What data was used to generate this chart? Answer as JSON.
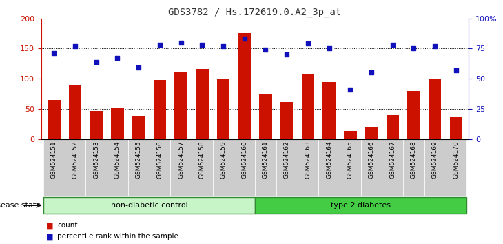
{
  "title": "GDS3782 / Hs.172619.0.A2_3p_at",
  "samples": [
    "GSM524151",
    "GSM524152",
    "GSM524153",
    "GSM524154",
    "GSM524155",
    "GSM524156",
    "GSM524157",
    "GSM524158",
    "GSM524159",
    "GSM524160",
    "GSM524161",
    "GSM524162",
    "GSM524163",
    "GSM524164",
    "GSM524165",
    "GSM524166",
    "GSM524167",
    "GSM524168",
    "GSM524169",
    "GSM524170"
  ],
  "counts": [
    65,
    90,
    46,
    52,
    38,
    98,
    112,
    116,
    100,
    175,
    75,
    61,
    107,
    95,
    14,
    20,
    40,
    80,
    100,
    36
  ],
  "percentiles": [
    71,
    77,
    64,
    67,
    59,
    78,
    80,
    78,
    77,
    83,
    74,
    70,
    79,
    75,
    41,
    55,
    78,
    75,
    77,
    57
  ],
  "groups": [
    {
      "label": "non-diabetic control",
      "start": 0,
      "end": 10,
      "color": "#c8f5c8"
    },
    {
      "label": "type 2 diabetes",
      "start": 10,
      "end": 20,
      "color": "#44cc44"
    }
  ],
  "bar_color": "#cc1100",
  "dot_color": "#1111bb",
  "ylim_left": [
    0,
    200
  ],
  "ylim_right": [
    0,
    100
  ],
  "yticks_left": [
    0,
    50,
    100,
    150,
    200
  ],
  "yticks_right": [
    0,
    25,
    50,
    75,
    100
  ],
  "yticklabels_right": [
    "0",
    "25",
    "50",
    "75",
    "100%"
  ],
  "grid_values": [
    50,
    100,
    150
  ],
  "left_axis_color": "#cc1100",
  "right_axis_color": "#1111bb",
  "legend_count_label": "count",
  "legend_pct_label": "percentile rank within the sample",
  "disease_state_label": "disease state"
}
